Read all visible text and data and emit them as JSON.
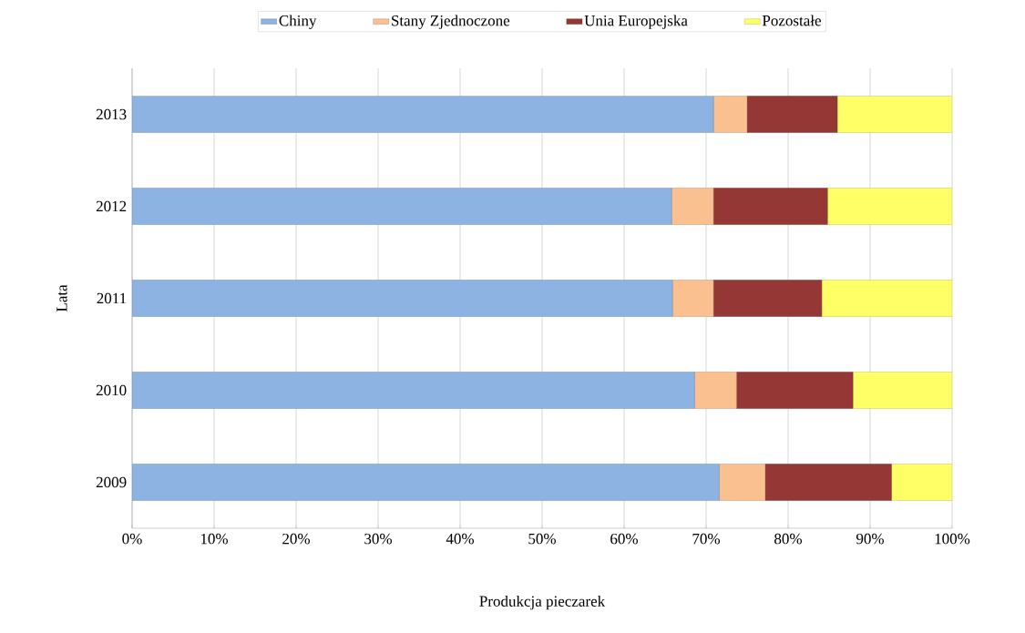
{
  "chart_data": {
    "type": "bar",
    "orientation": "horizontal",
    "stacked": true,
    "xlabel": "Produkcja pieczarek",
    "ylabel": "Lata",
    "categories": [
      "2013",
      "2012",
      "2011",
      "2010",
      "2009"
    ],
    "series": [
      {
        "name": "Chiny",
        "color": "#8db3e2",
        "values": [
          70.9,
          65.8,
          65.9,
          68.6,
          71.6
        ]
      },
      {
        "name": "Stany Zjednoczone",
        "color": "#fac090",
        "values": [
          4.1,
          5.1,
          5.0,
          5.1,
          5.6
        ]
      },
      {
        "name": "Unia Europejska",
        "color": "#953735",
        "values": [
          11.0,
          13.9,
          13.2,
          14.2,
          15.4
        ]
      },
      {
        "name": "Pozostałe",
        "color": "#ffff66",
        "values": [
          14.0,
          15.2,
          15.9,
          12.1,
          7.4
        ]
      }
    ],
    "xlim": [
      0,
      100
    ],
    "xticks": [
      {
        "value": 0,
        "label": "0%"
      },
      {
        "value": 10,
        "label": "10%"
      },
      {
        "value": 20,
        "label": "20%"
      },
      {
        "value": 30,
        "label": "30%"
      },
      {
        "value": 40,
        "label": "40%"
      },
      {
        "value": 50,
        "label": "50%"
      },
      {
        "value": 60,
        "label": "60%"
      },
      {
        "value": 70,
        "label": "70%"
      },
      {
        "value": 80,
        "label": "80%"
      },
      {
        "value": 90,
        "label": "90%"
      },
      {
        "value": 100,
        "label": "100%"
      }
    ],
    "grid": "x",
    "legend": "top"
  }
}
